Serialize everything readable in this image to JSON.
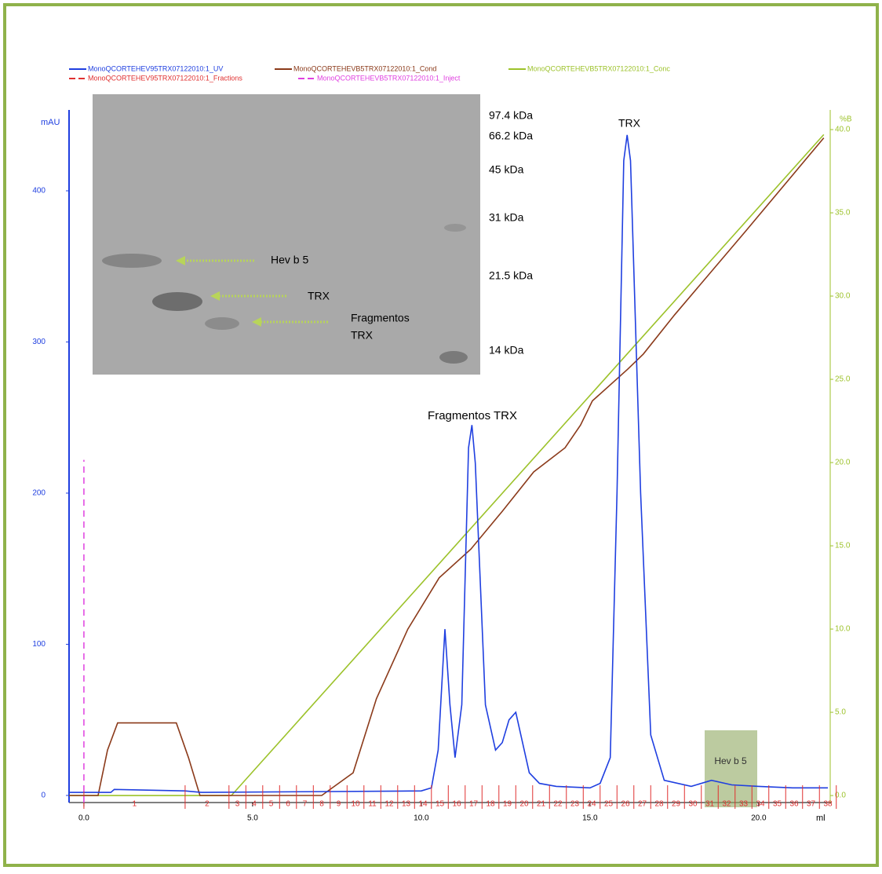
{
  "chart_data": {
    "type": "line",
    "series": [
      {
        "name": "MonoQCORTEHEV95TRX07122010:1_UV",
        "color": "#1f3fe0",
        "x": [
          -0.44,
          0.8,
          0.9,
          3.0,
          3.5,
          10.0,
          10.3,
          10.5,
          10.7,
          10.85,
          11.0,
          11.2,
          11.4,
          11.5,
          11.6,
          11.9,
          12.2,
          12.4,
          12.6,
          12.8,
          12.9,
          13.2,
          13.5,
          14.0,
          15.0,
          15.3,
          15.6,
          15.8,
          16.0,
          16.1,
          16.2,
          16.5,
          16.8,
          17.2,
          18.0,
          18.6,
          19.2,
          20.0,
          21.0,
          22.05
        ],
        "values": [
          2,
          2,
          4,
          3,
          2,
          3,
          5,
          30,
          110,
          60,
          25,
          60,
          230,
          245,
          220,
          60,
          30,
          35,
          50,
          55,
          45,
          15,
          8,
          6,
          5,
          8,
          25,
          200,
          420,
          437,
          420,
          200,
          40,
          10,
          6,
          10,
          7,
          6,
          5,
          5
        ]
      },
      {
        "name": "MonoQCORTEHEVB5TRX07122010:1_Cond",
        "color": "#8b3a1a",
        "x": [
          -0.44,
          0.42,
          0.7,
          1.0,
          2.74,
          3.1,
          3.44,
          7.05,
          7.98,
          8.67,
          9.6,
          10.53,
          11.47,
          12.4,
          13.33,
          14.26,
          14.72,
          15.07,
          16.12,
          16.58,
          17.51,
          19.6,
          21.93
        ],
        "values": [
          0,
          0,
          30,
          48,
          48,
          25,
          0,
          0,
          15,
          64,
          110,
          144,
          163,
          188,
          214,
          230,
          245,
          261,
          282,
          292,
          318,
          373,
          435
        ]
      },
      {
        "name": "MonoQCORTEHEVB5TRX07122010:1_Conc",
        "color": "#9cc22a",
        "axis": "y2",
        "x": [
          -0.44,
          4.37,
          21.93
        ],
        "values": [
          0,
          0,
          39.7
        ]
      }
    ],
    "fractions": {
      "name": "MonoQCORTEHEV95TRX07122010:1_Fractions",
      "color": "#e03030",
      "boundaries": [
        0.0,
        3.0,
        4.3,
        4.8,
        5.3,
        5.8,
        6.3,
        6.8,
        7.3,
        7.8,
        8.3,
        8.8,
        9.3,
        9.8,
        10.3,
        10.8,
        11.3,
        11.8,
        12.3,
        12.8,
        13.3,
        13.8,
        14.3,
        14.8,
        15.3,
        15.8,
        16.3,
        16.8,
        17.3,
        17.8,
        18.3,
        18.8,
        19.3,
        19.8,
        20.3,
        20.8,
        21.3,
        21.8,
        22.3
      ],
      "labels": [
        1,
        2,
        3,
        4,
        5,
        6,
        7,
        8,
        9,
        10,
        11,
        12,
        13,
        14,
        15,
        16,
        17,
        18,
        19,
        20,
        21,
        22,
        23,
        24,
        25,
        26,
        27,
        28,
        29,
        30,
        31,
        32,
        33,
        34,
        35,
        36,
        37,
        38
      ]
    },
    "inject": {
      "name": "MonoQCORTEHEVB5TRX07122010:1_Inject",
      "color": "#e040e0",
      "x": 0,
      "value": 222
    },
    "xlim": [
      -0.44,
      22.05
    ],
    "xticks": [
      {
        "value": 0,
        "label": "0.0"
      },
      {
        "value": 5,
        "label": "5.0"
      },
      {
        "value": 10,
        "label": "10.0"
      },
      {
        "value": 15,
        "label": "15.0"
      },
      {
        "value": 20,
        "label": "20.0"
      }
    ],
    "x_label": "ml",
    "ylim": [
      -4.7,
      453.5
    ],
    "yticks": [
      0,
      100,
      200,
      300,
      400
    ],
    "y_label": "mAU",
    "y2lim": [
      -0.42,
      41.18
    ],
    "y2ticks": [
      {
        "value": 0,
        "label": "0.0"
      },
      {
        "value": 5,
        "label": "5.0"
      },
      {
        "value": 10,
        "label": "10.0"
      },
      {
        "value": 15,
        "label": "15.0"
      },
      {
        "value": 20,
        "label": "20.0"
      },
      {
        "value": 25,
        "label": "25.0"
      },
      {
        "value": 30,
        "label": "30.0"
      },
      {
        "value": 35,
        "label": "35.0"
      },
      {
        "value": 40,
        "label": "40.0"
      }
    ],
    "y2_label": "%B",
    "annotations": [
      "Fragmentos TRX",
      "TRX",
      "Hev b 5"
    ]
  },
  "inset": {
    "markers": [
      "97.4 kDa",
      "66.2 kDa",
      "45 kDa",
      "31 kDa",
      "21.5 kDa",
      "14 kDa"
    ],
    "labels": [
      "Hev b 5",
      "TRX",
      "Fragmentos",
      "TRX"
    ]
  }
}
